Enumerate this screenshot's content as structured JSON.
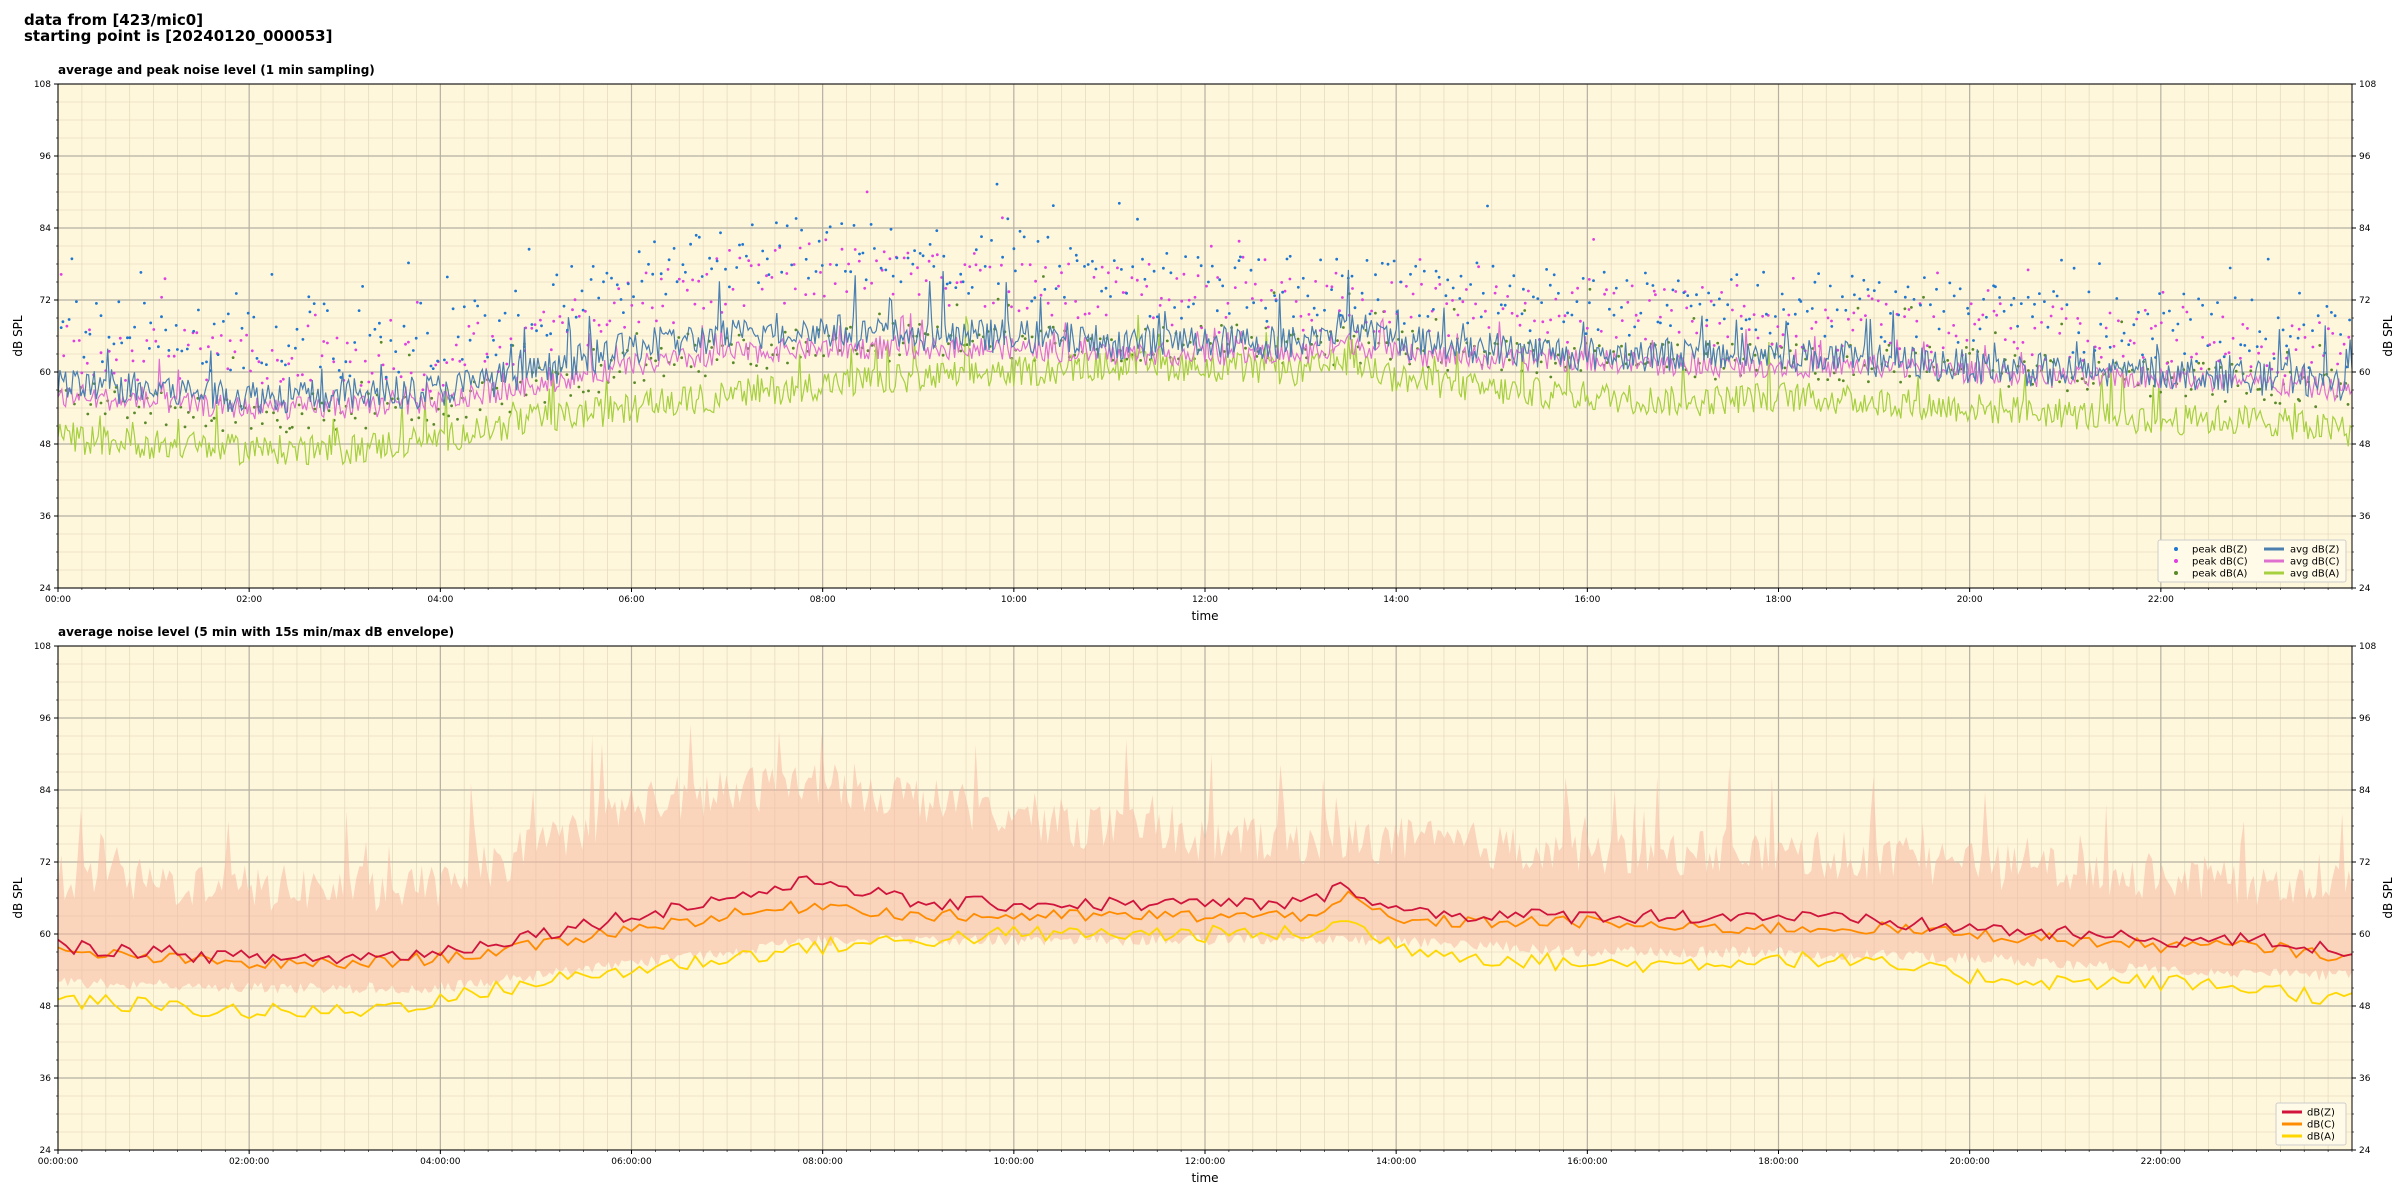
{
  "header": {
    "line1": "data from [423/mic0]",
    "line2": "starting point is [20240120_000053]"
  },
  "colors": {
    "plot_bg": "#fff7dc",
    "peak_z": "#1f77d0",
    "peak_c": "#e040e0",
    "peak_a": "#5a8a2a",
    "avg_z": "#4a7fb0",
    "avg_c": "#e070d0",
    "avg_a": "#a6d040",
    "env": "#f5b8a0",
    "dbz": "#d0143c",
    "dbc": "#ff8c00",
    "dba": "#ffd700"
  },
  "chart_data": [
    {
      "type": "line",
      "title": "average and peak noise level (1 min sampling)",
      "xlabel": "time",
      "ylabel": "dB SPL",
      "ylim": [
        24,
        108
      ],
      "yticks": [
        24,
        36,
        48,
        60,
        72,
        84,
        96,
        108
      ],
      "xlim_hours": [
        0,
        24
      ],
      "xtick_labels": [
        "00:00",
        "02:00",
        "04:00",
        "06:00",
        "08:00",
        "10:00",
        "12:00",
        "14:00",
        "16:00",
        "18:00",
        "20:00",
        "22:00"
      ],
      "grid": true,
      "legend_position": "bottom-right",
      "legend": [
        "peak dB(Z)",
        "peak dB(C)",
        "peak dB(A)",
        "avg dB(Z)",
        "avg dB(C)",
        "avg dB(A)"
      ],
      "series": [
        {
          "name": "avg dB(Z)",
          "hours": [
            0,
            1,
            2,
            3,
            4,
            5,
            6,
            7,
            8,
            9,
            10,
            11,
            12,
            13,
            13.5,
            14,
            15,
            16,
            17,
            18,
            19,
            20,
            21,
            22,
            23,
            24
          ],
          "values": [
            58,
            57,
            56,
            56,
            57,
            60,
            64,
            66,
            67,
            66,
            66,
            65,
            65,
            65,
            68,
            65,
            64,
            63,
            63,
            63,
            62,
            61,
            60,
            60,
            59,
            58
          ]
        },
        {
          "name": "avg dB(C)",
          "hours": [
            0,
            1,
            2,
            3,
            4,
            5,
            6,
            7,
            8,
            9,
            10,
            11,
            12,
            13,
            13.5,
            14,
            15,
            16,
            17,
            18,
            19,
            20,
            21,
            22,
            23,
            24
          ],
          "values": [
            56,
            55,
            54,
            54,
            55,
            58,
            61,
            63,
            64,
            64,
            64,
            63,
            63,
            63,
            65,
            63,
            62,
            62,
            61,
            61,
            61,
            60,
            59,
            59,
            58,
            57
          ]
        },
        {
          "name": "avg dB(A)",
          "hours": [
            0,
            1,
            2,
            3,
            4,
            5,
            6,
            7,
            8,
            9,
            10,
            11,
            12,
            13,
            13.5,
            14,
            15,
            16,
            17,
            18,
            19,
            20,
            21,
            22,
            23,
            24
          ],
          "values": [
            49,
            48,
            47,
            47,
            49,
            52,
            54,
            56,
            58,
            59,
            60,
            61,
            61,
            60,
            62,
            59,
            57,
            56,
            55,
            56,
            55,
            54,
            53,
            52,
            52,
            50
          ]
        },
        {
          "name": "peak dB(Z)",
          "hours": [
            0,
            2,
            4,
            6,
            8,
            10,
            12,
            14,
            16,
            18,
            20,
            22,
            24
          ],
          "values": [
            66,
            63,
            63,
            74,
            80,
            76,
            72,
            72,
            70,
            70,
            68,
            66,
            64
          ]
        },
        {
          "name": "peak dB(C)",
          "hours": [
            0,
            2,
            4,
            6,
            8,
            10,
            12,
            14,
            16,
            18,
            20,
            22,
            24
          ],
          "values": [
            63,
            60,
            60,
            70,
            76,
            73,
            70,
            69,
            68,
            67,
            66,
            64,
            62
          ]
        },
        {
          "name": "peak dB(A)",
          "hours": [
            0,
            2,
            4,
            6,
            8,
            10,
            12,
            14,
            16,
            18,
            20,
            22,
            24
          ],
          "values": [
            55,
            52,
            53,
            60,
            64,
            64,
            64,
            63,
            61,
            61,
            60,
            58,
            56
          ]
        }
      ]
    },
    {
      "type": "line",
      "title": "average noise level (5 min with 15s min/max dB envelope)",
      "xlabel": "time",
      "ylabel": "dB SPL",
      "ylim": [
        24,
        108
      ],
      "yticks": [
        24,
        36,
        48,
        60,
        72,
        84,
        96,
        108
      ],
      "xlim_hours": [
        0,
        24
      ],
      "xtick_labels": [
        "00:00:00",
        "02:00:00",
        "04:00:00",
        "06:00:00",
        "08:00:00",
        "10:00:00",
        "12:00:00",
        "14:00:00",
        "16:00:00",
        "18:00:00",
        "20:00:00",
        "22:00:00"
      ],
      "grid": true,
      "legend_position": "bottom-right",
      "legend": [
        "dB(Z)",
        "dB(C)",
        "dB(A)"
      ],
      "series": [
        {
          "name": "dB(Z)",
          "hours": [
            0,
            1,
            2,
            3,
            4,
            5,
            6,
            7,
            8,
            9,
            10,
            11,
            12,
            13,
            13.5,
            14,
            15,
            16,
            17,
            18,
            19,
            20,
            21,
            22,
            23,
            24
          ],
          "values": [
            58,
            57,
            56,
            56,
            57,
            60,
            63,
            66,
            69,
            65,
            65,
            65,
            65,
            65,
            68,
            64,
            63,
            63,
            63,
            63,
            62,
            61,
            60,
            59,
            59,
            57
          ]
        },
        {
          "name": "dB(C)",
          "hours": [
            0,
            1,
            2,
            3,
            4,
            5,
            6,
            7,
            8,
            9,
            10,
            11,
            12,
            13,
            13.5,
            14,
            15,
            16,
            17,
            18,
            19,
            20,
            21,
            22,
            23,
            24
          ],
          "values": [
            57,
            56,
            55,
            55,
            56,
            58,
            61,
            63,
            65,
            63,
            63,
            63,
            63,
            63,
            66,
            62,
            62,
            62,
            61,
            61,
            61,
            60,
            59,
            58,
            58,
            56
          ]
        },
        {
          "name": "dB(A)",
          "hours": [
            0,
            1,
            2,
            3,
            4,
            5,
            6,
            7,
            8,
            9,
            10,
            11,
            12,
            13,
            13.5,
            14,
            15,
            16,
            17,
            18,
            19,
            20,
            21,
            22,
            23,
            24
          ],
          "values": [
            49,
            48,
            47,
            47,
            49,
            52,
            54,
            56,
            58,
            59,
            60,
            60,
            60,
            60,
            62,
            58,
            56,
            55,
            55,
            56,
            55,
            53,
            52,
            52,
            51,
            49
          ]
        },
        {
          "name": "envelope max",
          "hours": [
            0,
            2,
            4,
            6,
            8,
            10,
            12,
            14,
            16,
            18,
            20,
            22,
            24
          ],
          "values": [
            68,
            66,
            66,
            80,
            84,
            78,
            74,
            74,
            72,
            72,
            70,
            68,
            66
          ]
        },
        {
          "name": "envelope min",
          "hours": [
            0,
            2,
            4,
            6,
            8,
            10,
            12,
            14,
            16,
            18,
            20,
            22,
            24
          ],
          "values": [
            53,
            52,
            52,
            56,
            60,
            60,
            60,
            60,
            58,
            58,
            57,
            55,
            54
          ]
        }
      ]
    }
  ]
}
